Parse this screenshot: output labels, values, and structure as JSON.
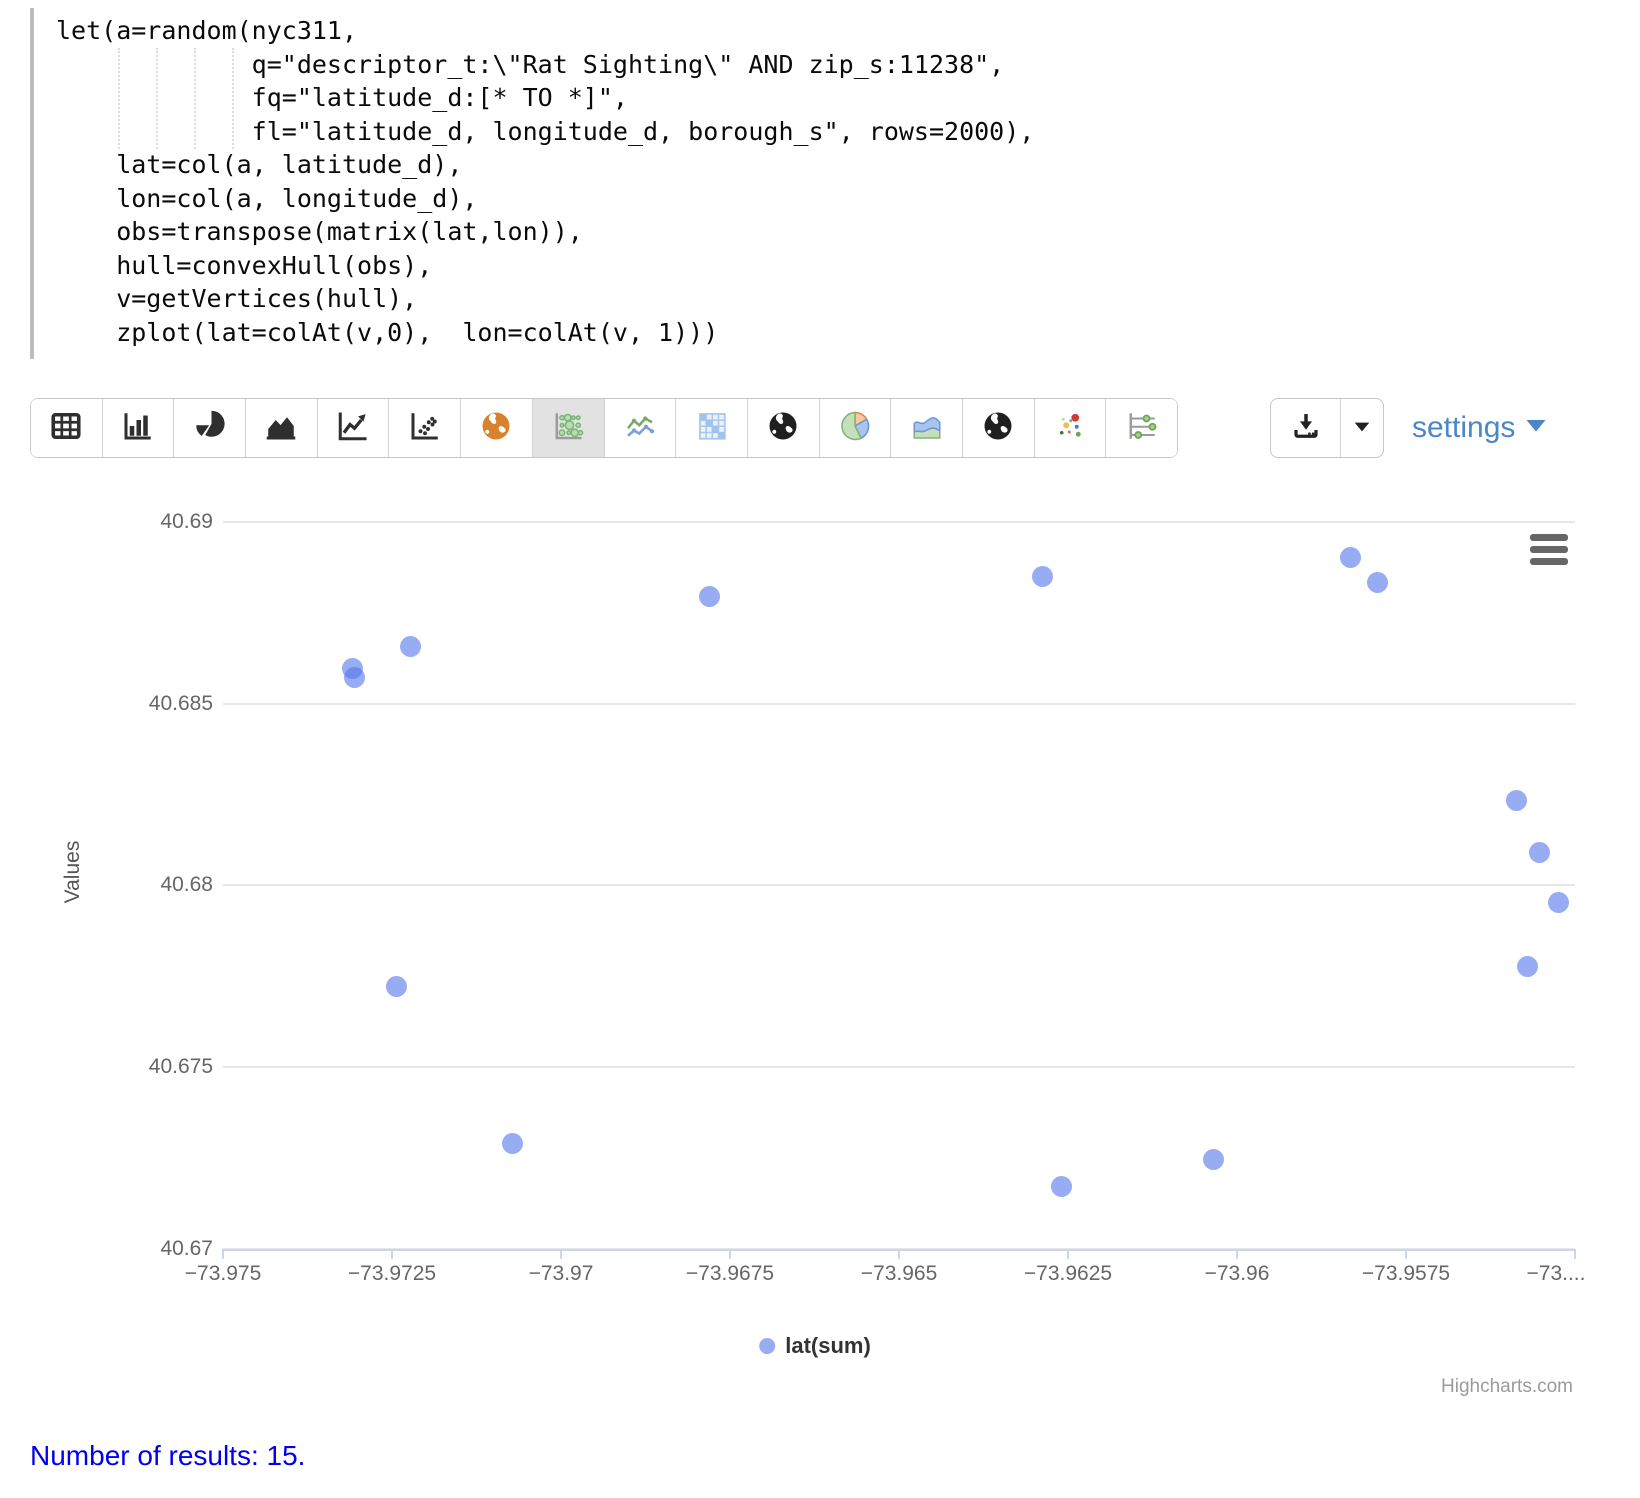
{
  "code": {
    "lines": [
      "let(a=random(nyc311,",
      "             q=\"descriptor_t:\\\"Rat Sighting\\\" AND zip_s:11238\",",
      "             fq=\"latitude_d:[* TO *]\",",
      "             fl=\"latitude_d, longitude_d, borough_s\", rows=2000),",
      "    lat=col(a, latitude_d),",
      "    lon=col(a, longitude_d),",
      "    obs=transpose(matrix(lat,lon)),",
      "    hull=convexHull(obs),",
      "    v=getVertices(hull),",
      "    zplot(lat=colAt(v,0),  lon=colAt(v, 1)))"
    ]
  },
  "toolbar": {
    "chart_type_buttons": [
      {
        "icon": "table-icon",
        "selected": false
      },
      {
        "icon": "bar-chart-icon",
        "selected": false
      },
      {
        "icon": "pie-chart-icon",
        "selected": false
      },
      {
        "icon": "area-chart-icon",
        "selected": false
      },
      {
        "icon": "line-chart-icon",
        "selected": false
      },
      {
        "icon": "scatter-chart-icon",
        "selected": false
      },
      {
        "icon": "globe-orange-icon",
        "selected": false
      },
      {
        "icon": "bubble-grid-icon",
        "selected": true
      },
      {
        "icon": "spline-chart-icon",
        "selected": false
      },
      {
        "icon": "heatmap-icon",
        "selected": false
      },
      {
        "icon": "globe-dark-icon",
        "selected": false
      },
      {
        "icon": "pie-colored-icon",
        "selected": false
      },
      {
        "icon": "area-colored-icon",
        "selected": false
      },
      {
        "icon": "globe-dark2-icon",
        "selected": false
      },
      {
        "icon": "bubble-colored-icon",
        "selected": false
      },
      {
        "icon": "dot-plot-icon",
        "selected": false
      }
    ],
    "settings_label": "settings"
  },
  "chart_data": {
    "type": "scatter",
    "title": "",
    "xlabel": "",
    "ylabel": "Values",
    "xlim": [
      -73.975,
      -73.955
    ],
    "ylim": [
      40.67,
      40.69074
    ],
    "grid": true,
    "legend_position": "bottom-center",
    "marker_color": "rgba(87,121,234,0.62)",
    "gridline_color": "#e7e7e7",
    "axis_line_color": "#ccd6eb",
    "x_ticks": [
      {
        "v": -73.975,
        "label": "−73.975"
      },
      {
        "v": -73.9725,
        "label": "−73.9725"
      },
      {
        "v": -73.97,
        "label": "−73.97"
      },
      {
        "v": -73.9675,
        "label": "−73.9675"
      },
      {
        "v": -73.965,
        "label": "−73.965"
      },
      {
        "v": -73.9625,
        "label": "−73.9625"
      },
      {
        "v": -73.96,
        "label": "−73.96"
      },
      {
        "v": -73.9575,
        "label": "−73.9575"
      },
      {
        "v": -73.955,
        "label": "−73....",
        "dx": -19
      }
    ],
    "y_ticks": [
      {
        "v": 40.69,
        "label": "40.69"
      },
      {
        "v": 40.685,
        "label": "40.685"
      },
      {
        "v": 40.68,
        "label": "40.68"
      },
      {
        "v": 40.675,
        "label": "40.675"
      },
      {
        "v": 40.67,
        "label": "40.67"
      }
    ],
    "series": [
      {
        "name": "lat(sum)",
        "color": "rgba(87,121,234,0.62)",
        "points": [
          {
            "x": -73.97309,
            "y": 40.68598
          },
          {
            "x": -73.97306,
            "y": 40.68571
          },
          {
            "x": -73.97222,
            "y": 40.68656
          },
          {
            "x": -73.9678,
            "y": 40.68794
          },
          {
            "x": -73.96287,
            "y": 40.68851
          },
          {
            "x": -73.95832,
            "y": 40.68901
          },
          {
            "x": -73.95792,
            "y": 40.68832
          },
          {
            "x": -73.95586,
            "y": 40.68233
          },
          {
            "x": -73.95553,
            "y": 40.68092
          },
          {
            "x": -73.95524,
            "y": 40.67952
          },
          {
            "x": -73.9557,
            "y": 40.67776
          },
          {
            "x": -73.97244,
            "y": 40.67721
          },
          {
            "x": -73.97072,
            "y": 40.67289
          },
          {
            "x": -73.9626,
            "y": 40.67173
          },
          {
            "x": -73.96035,
            "y": 40.67245
          }
        ]
      }
    ],
    "credits": "Highcharts.com"
  },
  "footer": {
    "text": "Number of results: 15."
  }
}
